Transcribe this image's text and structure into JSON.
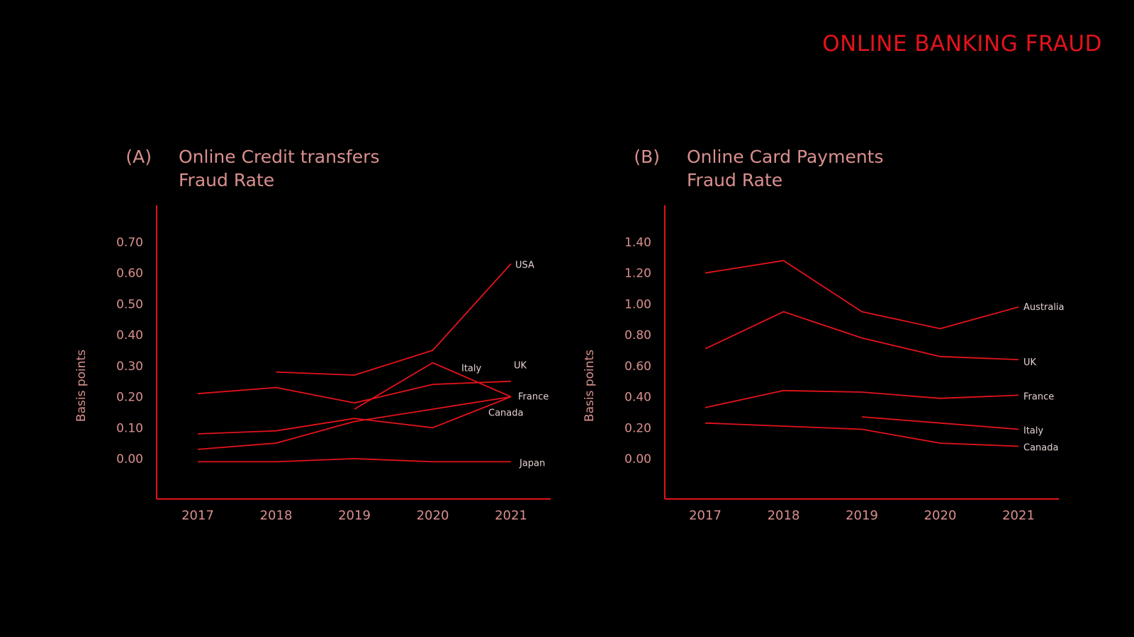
{
  "page": {
    "main_title": "ONLINE BANKING FRAUD",
    "colors": {
      "background": "#000000",
      "accent": "#e3131b",
      "text_muted": "#d9908e",
      "series_label": "#e6d2d2"
    }
  },
  "chart_data": [
    {
      "type": "line",
      "panel_label": "(A)",
      "title_lines": [
        "Online Credit transfers",
        "Fraud Rate"
      ],
      "ylabel": "Basis points",
      "x": [
        "2017",
        "2018",
        "2019",
        "2020",
        "2021"
      ],
      "y_ticks": [
        "0.00",
        "0.10",
        "0.20",
        "0.30",
        "0.40",
        "0.50",
        "0.60",
        "0.70"
      ],
      "ylim": [
        -0.13,
        0.82
      ],
      "series": [
        {
          "name": "USA",
          "values": [
            null,
            0.28,
            0.27,
            0.35,
            0.63
          ]
        },
        {
          "name": "Italy",
          "values": [
            null,
            null,
            0.16,
            0.31,
            0.2
          ]
        },
        {
          "name": "UK",
          "values": [
            0.21,
            0.23,
            0.18,
            0.24,
            0.25
          ]
        },
        {
          "name": "France",
          "values": [
            0.08,
            0.09,
            0.13,
            0.1,
            0.2
          ]
        },
        {
          "name": "Canada",
          "values": [
            0.03,
            0.05,
            0.12,
            0.16,
            0.2
          ]
        },
        {
          "name": "Japan",
          "values": [
            -0.01,
            -0.01,
            0.0,
            -0.01,
            -0.01
          ]
        }
      ]
    },
    {
      "type": "line",
      "panel_label": "(B)",
      "title_lines": [
        "Online Card Payments",
        "Fraud Rate"
      ],
      "ylabel": "Basis points",
      "x": [
        "2017",
        "2018",
        "2019",
        "2020",
        "2021"
      ],
      "y_ticks": [
        "0.00",
        "0.20",
        "0.40",
        "0.60",
        "0.80",
        "1.00",
        "1.20",
        "1.40"
      ],
      "ylim": [
        -0.26,
        1.64
      ],
      "series": [
        {
          "name": "Australia",
          "values": [
            1.2,
            1.28,
            0.95,
            0.84,
            0.98
          ]
        },
        {
          "name": "UK",
          "values": [
            0.71,
            0.95,
            0.78,
            0.66,
            0.64
          ]
        },
        {
          "name": "France",
          "values": [
            0.33,
            0.44,
            0.43,
            0.39,
            0.41
          ]
        },
        {
          "name": "Italy",
          "values": [
            null,
            null,
            0.27,
            0.23,
            0.19
          ]
        },
        {
          "name": "Canada",
          "values": [
            0.23,
            0.21,
            0.19,
            0.1,
            0.08
          ]
        }
      ]
    }
  ]
}
